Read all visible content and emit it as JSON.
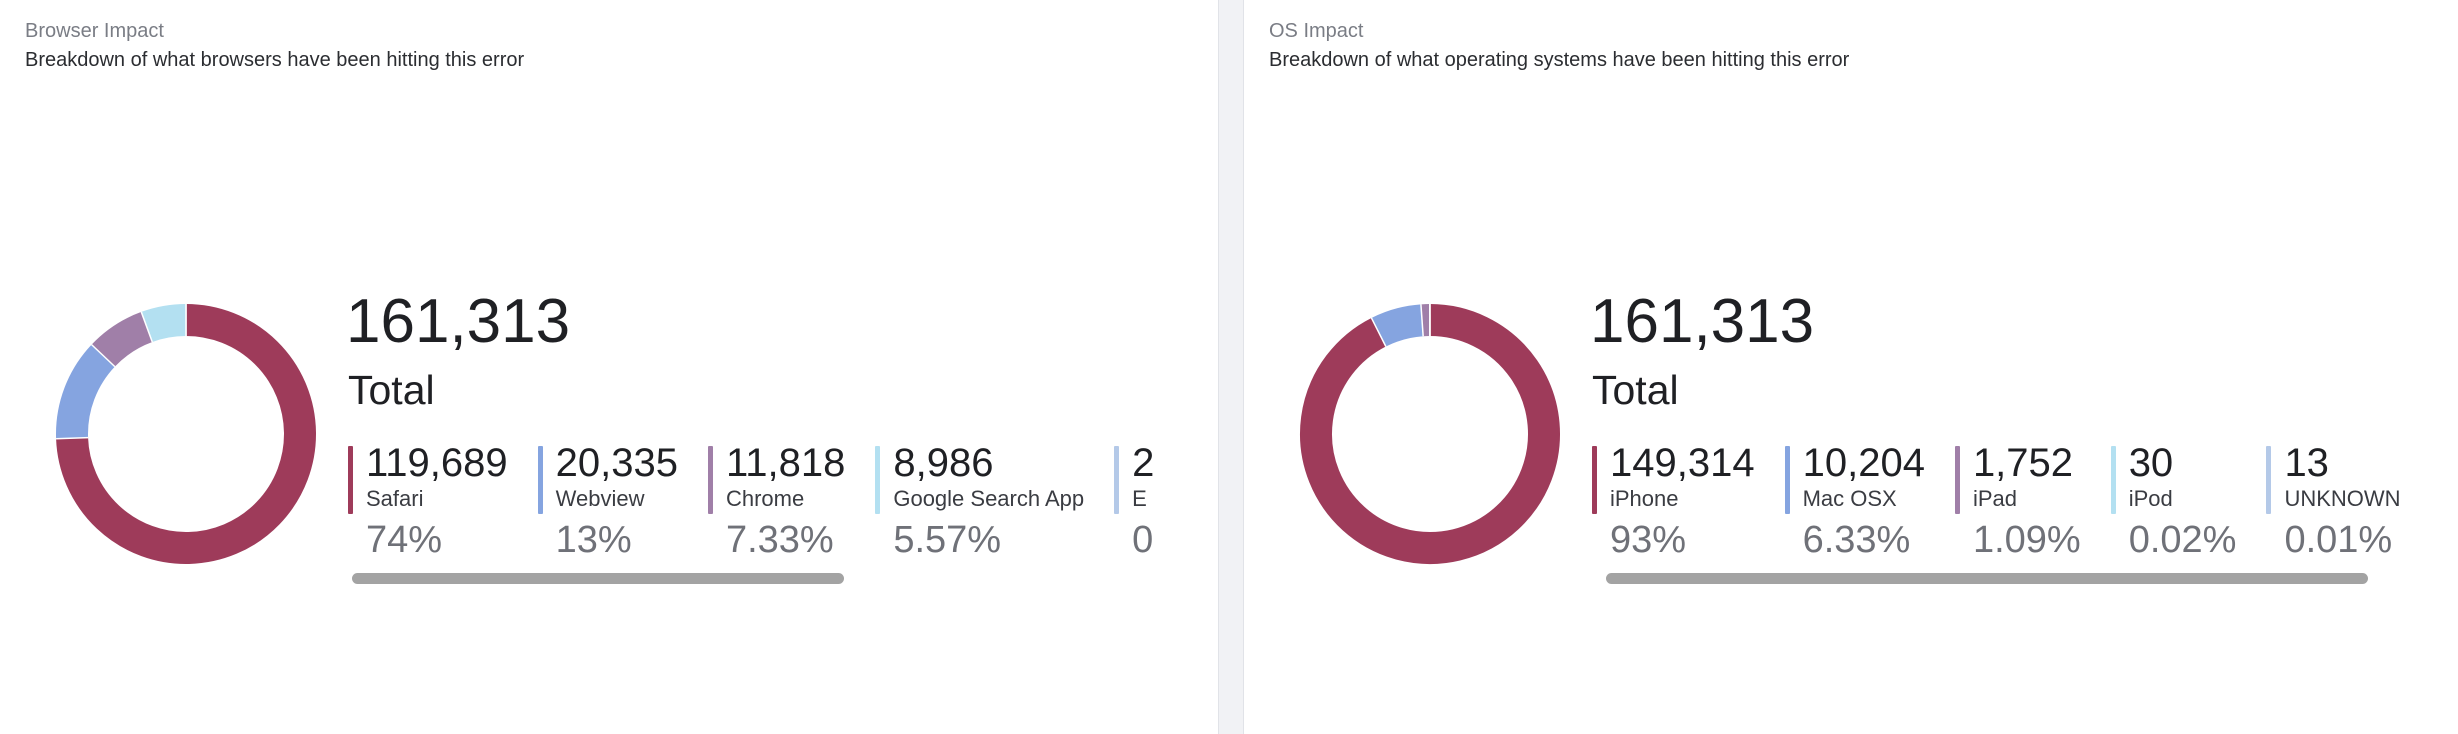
{
  "colors": {
    "series": [
      "#9e3b5a",
      "#85a4e0",
      "#a07fa8",
      "#b3e0f1",
      "#b4c9e8"
    ],
    "scrollbar": "#a3a3a3",
    "divider": "#f1f2f5"
  },
  "browser": {
    "title": "Browser Impact",
    "subtitle": "Breakdown of what browsers have been hitting this error",
    "total": "161,313",
    "total_label": "Total",
    "items": [
      {
        "count": "119,689",
        "name": "Safari",
        "pct": "74%",
        "value": 119689
      },
      {
        "count": "20,335",
        "name": "Webview",
        "pct": "13%",
        "value": 20335
      },
      {
        "count": "11,818",
        "name": "Chrome",
        "pct": "7.33%",
        "value": 11818
      },
      {
        "count": "8,986",
        "name": "Google Search App",
        "pct": "5.57%",
        "value": 8986
      },
      {
        "count": "2",
        "name": "E",
        "pct": "0",
        "value": 2
      }
    ]
  },
  "os": {
    "title": "OS Impact",
    "subtitle": "Breakdown of what operating systems have been hitting this error",
    "total": "161,313",
    "total_label": "Total",
    "items": [
      {
        "count": "149,314",
        "name": "iPhone",
        "pct": "93%",
        "value": 149314
      },
      {
        "count": "10,204",
        "name": "Mac OSX",
        "pct": "6.33%",
        "value": 10204
      },
      {
        "count": "1,752",
        "name": "iPad",
        "pct": "1.09%",
        "value": 1752
      },
      {
        "count": "30",
        "name": "iPod",
        "pct": "0.02%",
        "value": 30
      },
      {
        "count": "13",
        "name": "UNKNOWN",
        "pct": "0.01%",
        "value": 13
      }
    ]
  }
}
